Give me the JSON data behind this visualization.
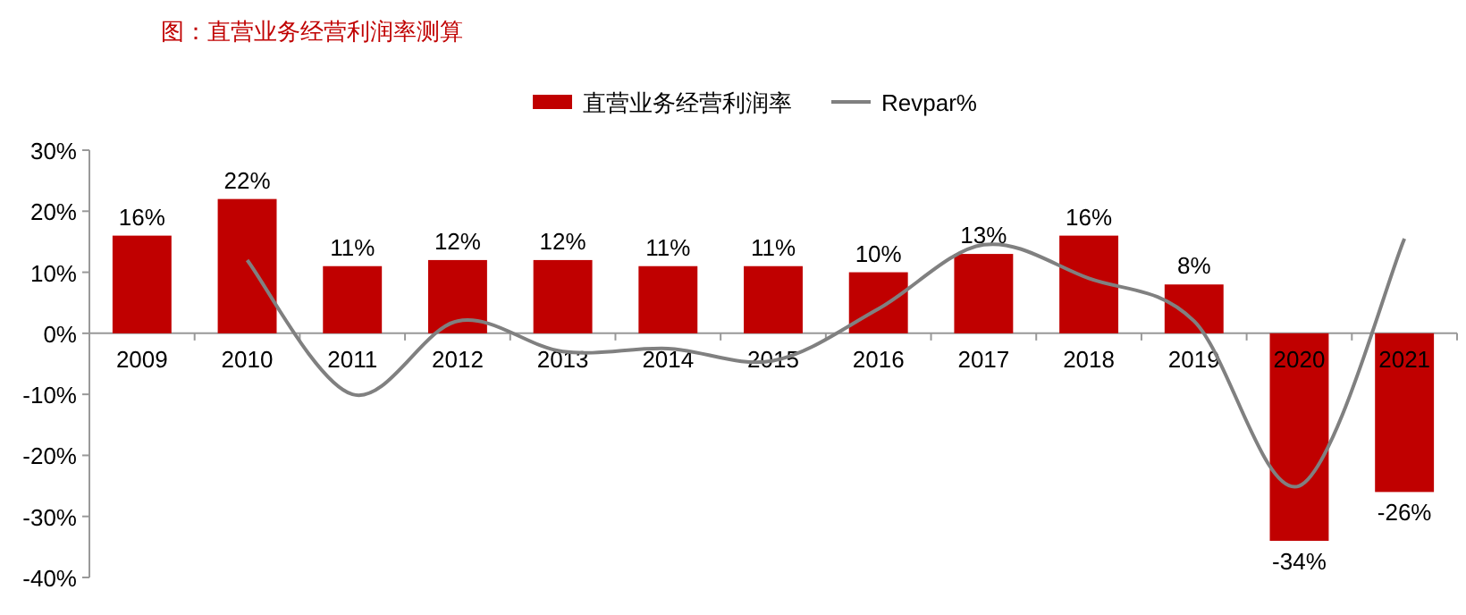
{
  "chart_data": {
    "type": "bar",
    "title": "图：直营业务经营利润率测算",
    "categories": [
      "2009",
      "2010",
      "2011",
      "2012",
      "2013",
      "2014",
      "2015",
      "2016",
      "2017",
      "2018",
      "2019",
      "2020",
      "2021"
    ],
    "series": [
      {
        "name": "直营业务经营利润率",
        "color": "#c00000",
        "values": [
          16,
          22,
          11,
          12,
          12,
          11,
          11,
          10,
          13,
          16,
          8,
          -34,
          -26
        ],
        "value_labels": [
          "16%",
          "22%",
          "11%",
          "12%",
          "12%",
          "11%",
          "11%",
          "10%",
          "13%",
          "16%",
          "8%",
          "-34%",
          "-26%"
        ]
      },
      {
        "name": "Revpar%",
        "type": "line",
        "color": "#808080",
        "values": [
          null,
          12,
          -10,
          2,
          -3,
          -2.5,
          -4.5,
          4,
          14.5,
          9,
          2,
          -25,
          15.5
        ]
      }
    ],
    "ylim": [
      -40,
      30
    ],
    "yticks": [
      {
        "value": -40,
        "label": "-40%"
      },
      {
        "value": -30,
        "label": "-30%"
      },
      {
        "value": -20,
        "label": "-20%"
      },
      {
        "value": -10,
        "label": "-10%"
      },
      {
        "value": 0,
        "label": "0%"
      },
      {
        "value": 10,
        "label": "10%"
      },
      {
        "value": 20,
        "label": "20%"
      },
      {
        "value": 30,
        "label": "30%"
      }
    ],
    "legend": "top",
    "grid": false
  }
}
